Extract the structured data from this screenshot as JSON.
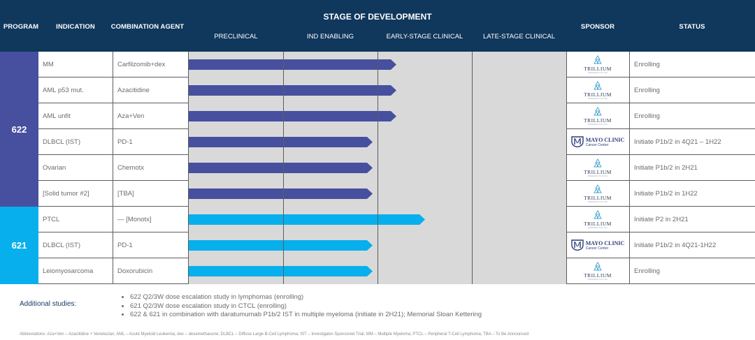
{
  "header": {
    "program": "PROGRAM",
    "indication": "INDICATION",
    "combination_agent": "COMBINATION AGENT",
    "stage_of_development": "STAGE OF DEVELOPMENT",
    "stages": [
      "PRECLINICAL",
      "IND ENABLING",
      "EARLY-STAGE CLINICAL",
      "LATE-STAGE CLINICAL"
    ],
    "sponsor": "SPONSOR",
    "status": "STATUS"
  },
  "colors": {
    "header_bg": "#10375c",
    "program_622": "#474f9f",
    "program_621": "#07b0ec",
    "stage_bg": "#d9d9d9"
  },
  "programs": [
    {
      "id": "622",
      "color": "#474f9f",
      "row_count": 6
    },
    {
      "id": "621",
      "color": "#07b0ec",
      "row_count": 3
    }
  ],
  "rows": [
    {
      "program": "622",
      "indication": "MM",
      "agent": "Carfilzomib+dex",
      "progress_stage": 2.2,
      "sponsor": "Trillium",
      "status": "Enrolling"
    },
    {
      "program": "622",
      "indication": "AML p53 mut.",
      "agent": "Azacitidine",
      "progress_stage": 2.2,
      "sponsor": "Trillium",
      "status": "Enrolling"
    },
    {
      "program": "622",
      "indication": "AML unfit",
      "agent": "Aza+Ven",
      "progress_stage": 2.2,
      "sponsor": "Trillium",
      "status": "Enrolling"
    },
    {
      "program": "622",
      "indication": "DLBCL (IST)",
      "agent": "PD-1",
      "progress_stage": 1.95,
      "sponsor": "Mayo Clinic",
      "status": "Initiate P1b/2 in 4Q21 – 1H22"
    },
    {
      "program": "622",
      "indication": "Ovarian",
      "agent": "Chemotx",
      "progress_stage": 1.95,
      "sponsor": "Trillium",
      "status": "Initiate P1b/2 in 2H21"
    },
    {
      "program": "622",
      "indication": "[Solid tumor #2]",
      "agent": "[TBA]",
      "progress_stage": 1.95,
      "sponsor": "Trillium",
      "status": "Initiate P1b/2 in 1H22"
    },
    {
      "program": "621",
      "indication": "PTCL",
      "agent": "— [Monotx]",
      "progress_stage": 2.5,
      "sponsor": "Trillium",
      "status": "Initiate P2 in 2H21"
    },
    {
      "program": "621",
      "indication": "DLBCL (IST)",
      "agent": "PD-1",
      "progress_stage": 1.95,
      "sponsor": "Mayo Clinic",
      "status": "Initiate P1b/2 in 4Q21-1H22"
    },
    {
      "program": "621",
      "indication": "Leiomyosarcoma",
      "agent": "Doxorubicin",
      "progress_stage": 1.95,
      "sponsor": "Trillium",
      "status": "Enrolling"
    }
  ],
  "logos": {
    "trillium_name": "TRILLIUM",
    "trillium_sub": "THERAPEUTICS INC",
    "mayo_name": "MAYO CLINIC",
    "mayo_sub": "Cancer Center"
  },
  "footer": {
    "label": "Additional studies:",
    "items": [
      "622 Q2/3W dose escalation study in lymphomas (enrolling)",
      "621 Q2/3W dose escalation study in CTCL (enrolling)",
      "622 & 621 in combination with daratumumab P1b/2 IST in multiple myeloma (initiate in 2H21); Memorial Sloan Kettering"
    ],
    "abbreviations": "Abbreviations: Aza+Ven – Azacitidine + Venetoclax; AML – Acute Myeloid Leukemia; dex – dexamethasone; DLBCL – Diffuse Large B-Cell Lymphoma; IST – Investigator-Sponsored Trial; MM – Multiple Myeloma; PTCL – Peripheral T-Cell Lymphoma; TBA – To Be Announced"
  }
}
